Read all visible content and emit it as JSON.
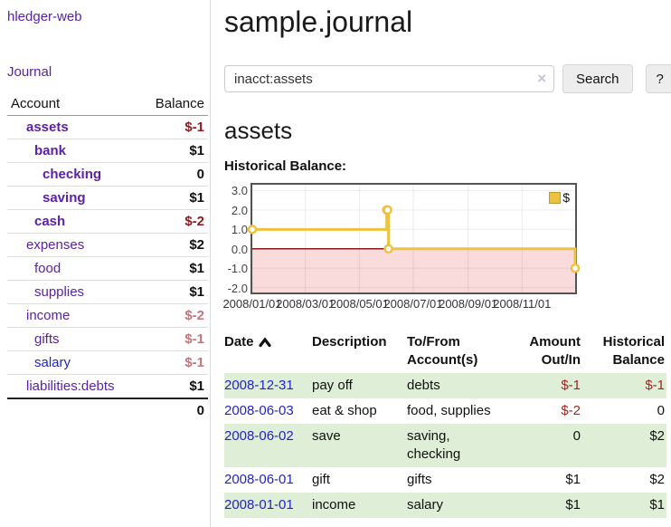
{
  "app": {
    "brand": "hledger-web",
    "nav_journal": "Journal"
  },
  "sidebar": {
    "col_account": "Account",
    "col_balance": "Balance",
    "accounts": [
      {
        "name": "assets",
        "depth": 1,
        "bold": true,
        "link": "purple",
        "balance": "$-1",
        "amount_class": "neg-strong"
      },
      {
        "name": "bank",
        "depth": 2,
        "bold": true,
        "link": "purple",
        "balance": "$1",
        "amount_class": ""
      },
      {
        "name": "checking",
        "depth": 3,
        "bold": true,
        "link": "purple",
        "balance": "0",
        "amount_class": ""
      },
      {
        "name": "saving",
        "depth": 3,
        "bold": true,
        "link": "purple",
        "balance": "$1",
        "amount_class": ""
      },
      {
        "name": "cash",
        "depth": 2,
        "bold": true,
        "link": "purple",
        "balance": "$-2",
        "amount_class": "neg-strong"
      },
      {
        "name": "expenses",
        "depth": 1,
        "bold": false,
        "link": "purple",
        "balance": "$2",
        "amount_class": ""
      },
      {
        "name": "food",
        "depth": 2,
        "bold": false,
        "link": "purple",
        "balance": "$1",
        "amount_class": ""
      },
      {
        "name": "supplies",
        "depth": 2,
        "bold": false,
        "link": "purple",
        "balance": "$1",
        "amount_class": ""
      },
      {
        "name": "income",
        "depth": 1,
        "bold": false,
        "link": "purple",
        "balance": "$-2",
        "amount_class": "neg-soft"
      },
      {
        "name": "gifts",
        "depth": 2,
        "bold": false,
        "link": "purple",
        "balance": "$-1",
        "amount_class": "neg-soft"
      },
      {
        "name": "salary",
        "depth": 2,
        "bold": false,
        "link": "blue",
        "balance": "$-1",
        "amount_class": "neg-soft"
      },
      {
        "name": "liabilities:debts",
        "depth": 1,
        "bold": false,
        "link": "purple",
        "balance": "$1",
        "amount_class": ""
      }
    ],
    "total": "0"
  },
  "main": {
    "title": "sample.journal",
    "search": {
      "query": "inacct:assets",
      "clear_icon": "×",
      "button": "Search",
      "help_button": "?"
    },
    "account_heading": "assets",
    "chart_heading": "Historical Balance:"
  },
  "chart_data": {
    "type": "line",
    "title": "Historical Balance:",
    "series": [
      {
        "name": "$",
        "color": "#edc240",
        "steps": true,
        "marker": "open-circle",
        "points": [
          [
            "2008-01-01",
            1
          ],
          [
            "2008-06-01",
            2
          ],
          [
            "2008-06-02",
            2
          ],
          [
            "2008-06-03",
            0
          ],
          [
            "2008-12-31",
            -1
          ]
        ]
      }
    ],
    "x_ticks": [
      "2008/01/01",
      "2008/03/01",
      "2008/05/01",
      "2008/07/01",
      "2008/09/01",
      "2008/11/01"
    ],
    "y_ticks": [
      3.0,
      2.0,
      1.0,
      0.0,
      -1.0,
      -2.0
    ],
    "xlim": [
      "2008-01-01",
      "2008-12-31"
    ],
    "ylim": [
      -2.25,
      3.3
    ],
    "grid": true,
    "legend_position": "top-right",
    "legend_label": "$",
    "negative_region_color": "#fadbdb",
    "zero_line_color": "#8b1a1a",
    "border_color": "#545454"
  },
  "register": {
    "columns": {
      "date": "Date",
      "description": "Description",
      "tofrom": "To/From Account(s)",
      "amount": "Amount Out/In",
      "balance": "Historical Balance"
    },
    "rows": [
      {
        "date": "2008-12-31",
        "description": "pay off",
        "accounts": "debts",
        "amount": "$-1",
        "amount_neg": true,
        "balance": "$-1",
        "balance_neg": true,
        "shaded": true
      },
      {
        "date": "2008-06-03",
        "description": "eat & shop",
        "accounts": "food, supplies",
        "amount": "$-2",
        "amount_neg": true,
        "balance": "0",
        "balance_neg": false,
        "shaded": false
      },
      {
        "date": "2008-06-02",
        "description": "save",
        "accounts": "saving, checking",
        "amount": "0",
        "amount_neg": false,
        "balance": "$2",
        "balance_neg": false,
        "shaded": true
      },
      {
        "date": "2008-06-01",
        "description": "gift",
        "accounts": "gifts",
        "amount": "$1",
        "amount_neg": false,
        "balance": "$2",
        "balance_neg": false,
        "shaded": false
      },
      {
        "date": "2008-01-01",
        "description": "income",
        "accounts": "salary",
        "amount": "$1",
        "amount_neg": false,
        "balance": "$1",
        "balance_neg": false,
        "shaded": true
      }
    ]
  },
  "colors": {
    "link_purple": "#5b21a6",
    "link_blue": "#2222cc",
    "negative_strong": "#8e1a1e",
    "negative_soft": "#c1767c",
    "negative_table": "#a02525",
    "row_shade_green": "#dfeed6",
    "series_yellow": "#edc240",
    "negative_region_pink": "#fadbdb"
  }
}
